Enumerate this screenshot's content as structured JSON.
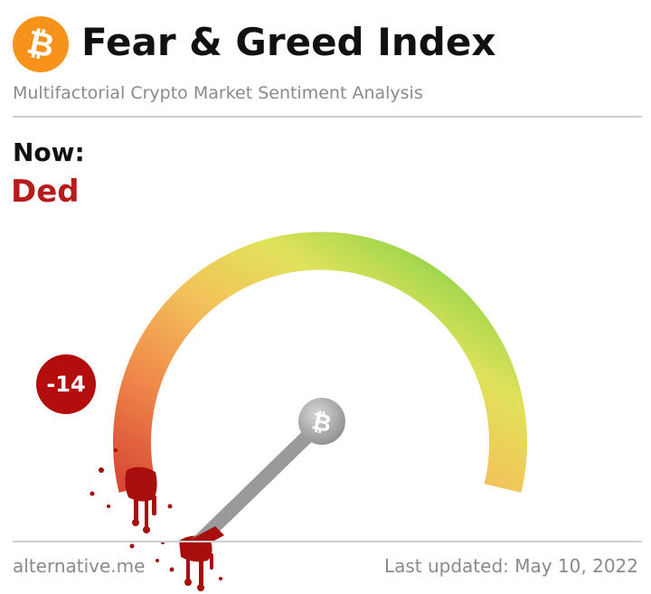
{
  "header": {
    "title": "Fear & Greed Index",
    "subtitle": "Multifactorial Crypto Market Sentiment Analysis",
    "logo_icon": "bitcoin-icon",
    "logo_color": "#f7931a"
  },
  "current": {
    "label": "Now:",
    "classification": "Ded",
    "value": "-14",
    "classification_color": "#b71c1c",
    "badge_color": "#b30d0d"
  },
  "gauge": {
    "min": 0,
    "max": 100,
    "needle_value": -14,
    "pivot_icon": "bitcoin-icon",
    "colors": [
      "#e0573d",
      "#f08a4b",
      "#f2c55a",
      "#e5e35b",
      "#a8d84f",
      "#5cc23a"
    ]
  },
  "footer": {
    "source": "alternative.me",
    "updated": "Last updated: May 10, 2022"
  }
}
